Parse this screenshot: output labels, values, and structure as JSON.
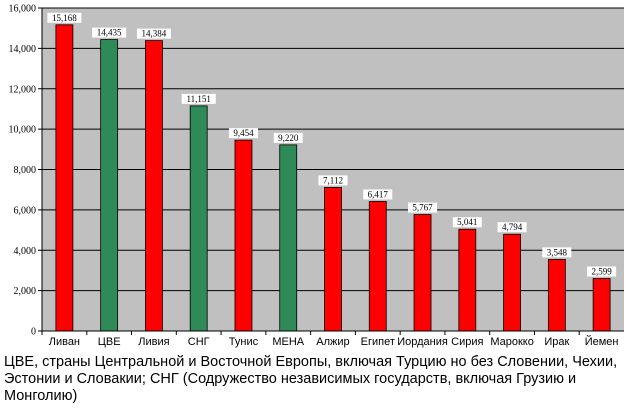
{
  "chart_data": {
    "type": "bar",
    "categories": [
      "Ливан",
      "ЦВЕ",
      "Ливия",
      "СНГ",
      "Тунис",
      "МЕНА",
      "Алжир",
      "Египет",
      "Иордания",
      "Сирия",
      "Марокко",
      "Ирак",
      "Йемен"
    ],
    "values": [
      15168,
      14435,
      14384,
      11151,
      9454,
      9220,
      7112,
      6417,
      5767,
      5041,
      4794,
      3548,
      2599
    ],
    "value_labels": [
      "15,168",
      "14,435",
      "14,384",
      "11,151",
      "9,454",
      "9,220",
      "7,112",
      "6,417",
      "5,767",
      "5,041",
      "4,794",
      "3,548",
      "2,599"
    ],
    "bar_colors": [
      "#ff0000",
      "#2e8b57",
      "#ff0000",
      "#2e8b57",
      "#ff0000",
      "#2e8b57",
      "#ff0000",
      "#ff0000",
      "#ff0000",
      "#ff0000",
      "#ff0000",
      "#ff0000",
      "#ff0000"
    ],
    "ylim": [
      0,
      16000
    ],
    "yticks": [
      0,
      2000,
      4000,
      6000,
      8000,
      10000,
      12000,
      14000,
      16000
    ],
    "ytick_labels": [
      "0",
      "2,000",
      "4,000",
      "6,000",
      "8,000",
      "10,000",
      "12,000",
      "14,000",
      "16,000"
    ],
    "grid": true,
    "plot_background": "#c0c0c0",
    "title": "",
    "xlabel": "",
    "ylabel": ""
  },
  "caption": "ЦВЕ, страны Центральной и Восточной Европы, включая Турцию но без Словении, Чехии, Эстонии и Словакии; СНГ (Содружество независимых государств, включая Грузию и Монголию)"
}
